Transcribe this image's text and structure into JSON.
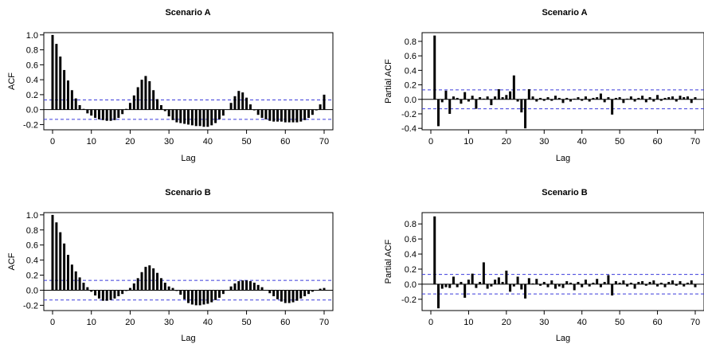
{
  "chart_data": [
    {
      "type": "bar",
      "title": "Scenario A",
      "xlabel": "Lag",
      "ylabel": "ACF",
      "xlim": [
        0,
        70
      ],
      "ylim": [
        -0.27,
        1.03
      ],
      "xticks": [
        0,
        10,
        20,
        30,
        40,
        50,
        60,
        70
      ],
      "yticks": [
        -0.2,
        0.0,
        0.2,
        0.4,
        0.6,
        0.8,
        1.0
      ],
      "x_start": 0,
      "values": [
        1.0,
        0.88,
        0.71,
        0.53,
        0.39,
        0.26,
        0.15,
        0.06,
        0.01,
        -0.05,
        -0.08,
        -0.11,
        -0.13,
        -0.14,
        -0.15,
        -0.15,
        -0.14,
        -0.11,
        -0.06,
        0.01,
        0.09,
        0.19,
        0.3,
        0.4,
        0.45,
        0.38,
        0.26,
        0.14,
        0.06,
        -0.02,
        -0.09,
        -0.14,
        -0.17,
        -0.18,
        -0.19,
        -0.2,
        -0.21,
        -0.22,
        -0.22,
        -0.23,
        -0.23,
        -0.21,
        -0.18,
        -0.13,
        -0.08,
        0.0,
        0.09,
        0.18,
        0.25,
        0.23,
        0.16,
        0.07,
        -0.01,
        -0.07,
        -0.11,
        -0.13,
        -0.15,
        -0.16,
        -0.16,
        -0.16,
        -0.17,
        -0.17,
        -0.17,
        -0.17,
        -0.16,
        -0.14,
        -0.11,
        -0.07,
        -0.01,
        0.07,
        0.2
      ],
      "conf_band": 0.13,
      "grid": false
    },
    {
      "type": "bar",
      "title": "Scenario A",
      "xlabel": "Lag",
      "ylabel": "Partial ACF",
      "xlim": [
        0,
        70
      ],
      "ylim": [
        -0.42,
        0.92
      ],
      "xticks": [
        0,
        10,
        20,
        30,
        40,
        50,
        60,
        70
      ],
      "yticks": [
        -0.4,
        -0.2,
        0.0,
        0.2,
        0.4,
        0.6,
        0.8
      ],
      "x_start": 1,
      "values": [
        0.88,
        -0.37,
        -0.04,
        0.12,
        -0.2,
        0.04,
        0.02,
        -0.06,
        0.1,
        -0.03,
        0.05,
        -0.13,
        0.03,
        0.01,
        0.04,
        -0.08,
        0.04,
        0.14,
        0.03,
        0.06,
        0.11,
        0.33,
        -0.03,
        -0.18,
        -0.4,
        0.14,
        0.04,
        -0.03,
        0.02,
        -0.02,
        0.03,
        -0.02,
        0.05,
        0.02,
        -0.05,
        0.02,
        -0.03,
        0.01,
        0.03,
        -0.02,
        0.04,
        -0.03,
        0.02,
        0.03,
        0.08,
        -0.04,
        0.03,
        -0.21,
        0.02,
        0.03,
        -0.05,
        0.01,
        0.04,
        -0.03,
        0.02,
        0.05,
        -0.04,
        0.03,
        -0.03,
        0.06,
        -0.02,
        0.02,
        0.03,
        0.04,
        -0.03,
        0.05,
        0.03,
        0.04,
        -0.05,
        0.03
      ],
      "conf_band": 0.13,
      "grid": false
    },
    {
      "type": "bar",
      "title": "Scenario B",
      "xlabel": "Lag",
      "ylabel": "ACF",
      "xlim": [
        0,
        70
      ],
      "ylim": [
        -0.27,
        1.03
      ],
      "xticks": [
        0,
        10,
        20,
        30,
        40,
        50,
        60,
        70
      ],
      "yticks": [
        -0.2,
        0.0,
        0.2,
        0.4,
        0.6,
        0.8,
        1.0
      ],
      "x_start": 0,
      "values": [
        1.0,
        0.9,
        0.77,
        0.62,
        0.47,
        0.34,
        0.25,
        0.17,
        0.1,
        0.04,
        -0.02,
        -0.07,
        -0.11,
        -0.14,
        -0.14,
        -0.13,
        -0.11,
        -0.08,
        -0.05,
        -0.01,
        0.03,
        0.09,
        0.16,
        0.24,
        0.31,
        0.33,
        0.29,
        0.23,
        0.16,
        0.1,
        0.05,
        0.03,
        -0.01,
        -0.06,
        -0.12,
        -0.17,
        -0.19,
        -0.2,
        -0.2,
        -0.19,
        -0.18,
        -0.16,
        -0.13,
        -0.1,
        -0.05,
        0.0,
        0.05,
        0.09,
        0.12,
        0.13,
        0.13,
        0.12,
        0.1,
        0.07,
        0.04,
        0.0,
        -0.04,
        -0.08,
        -0.12,
        -0.15,
        -0.17,
        -0.17,
        -0.16,
        -0.14,
        -0.11,
        -0.08,
        -0.05,
        -0.02,
        0.0,
        0.02,
        0.03
      ],
      "conf_band": 0.13,
      "grid": false
    },
    {
      "type": "bar",
      "title": "Scenario B",
      "xlabel": "Lag",
      "ylabel": "Partial ACF",
      "xlim": [
        0,
        70
      ],
      "ylim": [
        -0.35,
        0.95
      ],
      "xticks": [
        0,
        10,
        20,
        30,
        40,
        50,
        60,
        70
      ],
      "yticks": [
        -0.2,
        0.0,
        0.2,
        0.4,
        0.6,
        0.8
      ],
      "x_start": 1,
      "values": [
        0.9,
        -0.32,
        -0.06,
        -0.04,
        -0.05,
        0.1,
        -0.04,
        0.03,
        -0.18,
        0.06,
        0.14,
        -0.05,
        0.03,
        0.29,
        -0.06,
        -0.03,
        0.06,
        0.09,
        0.03,
        0.18,
        -0.1,
        -0.03,
        0.1,
        -0.07,
        -0.19,
        0.08,
        0.01,
        0.07,
        -0.02,
        0.03,
        -0.04,
        0.05,
        -0.06,
        -0.03,
        -0.05,
        0.04,
        0.02,
        -0.08,
        0.03,
        -0.04,
        0.06,
        -0.03,
        0.02,
        0.07,
        -0.04,
        0.03,
        0.12,
        -0.15,
        0.04,
        0.02,
        0.05,
        -0.03,
        0.02,
        -0.06,
        0.03,
        0.04,
        -0.02,
        0.03,
        0.05,
        -0.03,
        0.02,
        -0.04,
        0.03,
        0.05,
        -0.02,
        0.04,
        -0.03,
        0.02,
        0.05,
        -0.04
      ],
      "conf_band": 0.13,
      "grid": false
    }
  ]
}
